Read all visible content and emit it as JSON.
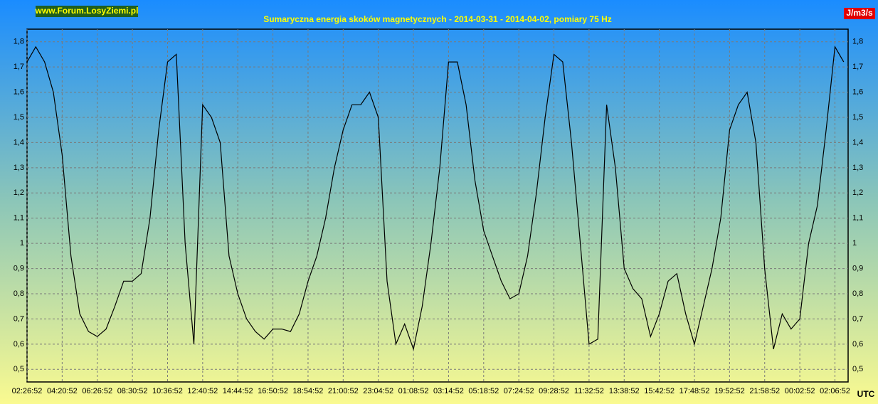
{
  "chart_data": {
    "type": "line",
    "title": "Sumaryczna energia skoków magnetycznych - 2014-03-31 - 2014-04-02, pomiary 75 Hz",
    "site": "www.Forum.LosyZiemi.pl",
    "unit": "J/m3/s",
    "timezone": "UTC",
    "color": "#000000",
    "grid": true,
    "categories": [
      "02:26:52",
      null,
      null,
      null,
      "04:20:52",
      null,
      null,
      null,
      "06:26:52",
      null,
      null,
      null,
      "08:30:52",
      null,
      null,
      null,
      "10:36:52",
      null,
      null,
      null,
      "12:40:52",
      null,
      null,
      null,
      "14:44:52",
      null,
      null,
      null,
      "16:50:52",
      null,
      null,
      null,
      "18:54:52",
      null,
      null,
      null,
      "21:00:52",
      null,
      null,
      null,
      "23:04:52",
      null,
      null,
      null,
      "01:08:52",
      null,
      null,
      null,
      "03:14:52",
      null,
      null,
      null,
      "05:18:52",
      null,
      null,
      null,
      "07:24:52",
      null,
      null,
      null,
      "09:28:52",
      null,
      null,
      null,
      "11:32:52",
      null,
      null,
      null,
      "13:38:52",
      null,
      null,
      null,
      "15:42:52",
      null,
      null,
      null,
      "17:48:52",
      null,
      null,
      null,
      "19:52:52",
      null,
      null,
      null,
      "21:58:52",
      null,
      null,
      null,
      "00:02:52",
      null,
      null,
      null,
      "02:06:52",
      null
    ],
    "values": [
      1.72,
      1.78,
      1.72,
      1.6,
      1.35,
      0.95,
      0.72,
      0.65,
      0.63,
      0.66,
      0.75,
      0.85,
      0.85,
      0.88,
      1.1,
      1.45,
      1.72,
      1.75,
      1.0,
      0.6,
      1.55,
      1.5,
      1.4,
      0.95,
      0.8,
      0.7,
      0.65,
      0.62,
      0.66,
      0.66,
      0.65,
      0.72,
      0.85,
      0.95,
      1.1,
      1.3,
      1.45,
      1.55,
      1.55,
      1.6,
      1.5,
      0.85,
      0.6,
      0.68,
      0.58,
      0.75,
      1.0,
      1.3,
      1.72,
      1.72,
      1.55,
      1.25,
      1.05,
      0.95,
      0.85,
      0.78,
      0.8,
      0.95,
      1.2,
      1.5,
      1.75,
      1.72,
      1.4,
      1.0,
      0.6,
      0.62,
      1.55,
      1.3,
      0.9,
      0.82,
      0.78,
      0.63,
      0.72,
      0.85,
      0.88,
      0.72,
      0.6,
      0.75,
      0.9,
      1.1,
      1.45,
      1.55,
      1.6,
      1.4,
      0.9,
      0.58,
      0.72,
      0.66,
      0.7,
      1.0,
      1.15,
      1.45,
      1.78,
      1.72
    ],
    "ylim": [
      0.45,
      1.85
    ],
    "yticks": [
      {
        "value": 0.5,
        "label": "0,5"
      },
      {
        "value": 0.6,
        "label": "0,6"
      },
      {
        "value": 0.7,
        "label": "0,7"
      },
      {
        "value": 0.8,
        "label": "0,8"
      },
      {
        "value": 0.9,
        "label": "0,9"
      },
      1,
      {
        "value": 1.1,
        "label": "1,1"
      },
      {
        "value": 1.2,
        "label": "1,2"
      },
      {
        "value": 1.3,
        "label": "1,3"
      },
      {
        "value": 1.4,
        "label": "1,4"
      },
      {
        "value": 1.5,
        "label": "1,5"
      },
      {
        "value": 1.6,
        "label": "1,6"
      },
      {
        "value": 1.7,
        "label": "1,7"
      },
      {
        "value": 1.8,
        "label": "1,8"
      }
    ]
  }
}
